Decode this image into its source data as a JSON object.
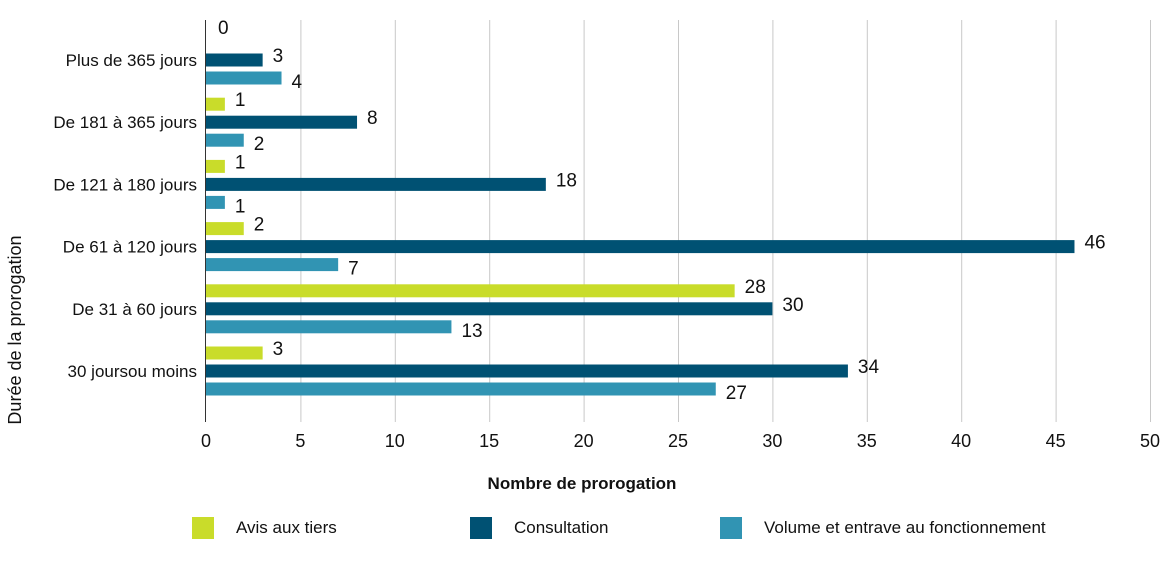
{
  "chart_data": {
    "type": "bar",
    "orientation": "horizontal",
    "categories": [
      "Plus de 365 jours",
      "De 181 à 365 jours",
      "De 121 à 180 jours",
      "De 61 à 120 jours",
      "De 31 à 60 jours",
      "30 joursou moins"
    ],
    "series": [
      {
        "name": "Avis aux tiers",
        "color": "#c9dc2a",
        "values": [
          0,
          1,
          1,
          2,
          28,
          3
        ]
      },
      {
        "name": "Consultation",
        "color": "#005173",
        "values": [
          3,
          8,
          18,
          46,
          30,
          34
        ]
      },
      {
        "name": "Volume et entrave au fonctionnement",
        "color": "#3194b3",
        "values": [
          4,
          2,
          1,
          7,
          13,
          27
        ]
      }
    ],
    "xlabel": "Nombre de prorogation",
    "ylabel": "Durée de la prorogation",
    "xlim": [
      0,
      50
    ],
    "xticks": [
      0,
      5,
      10,
      15,
      20,
      25,
      30,
      35,
      40,
      45,
      50
    ],
    "grid": "vertical",
    "legend": "bottom"
  }
}
